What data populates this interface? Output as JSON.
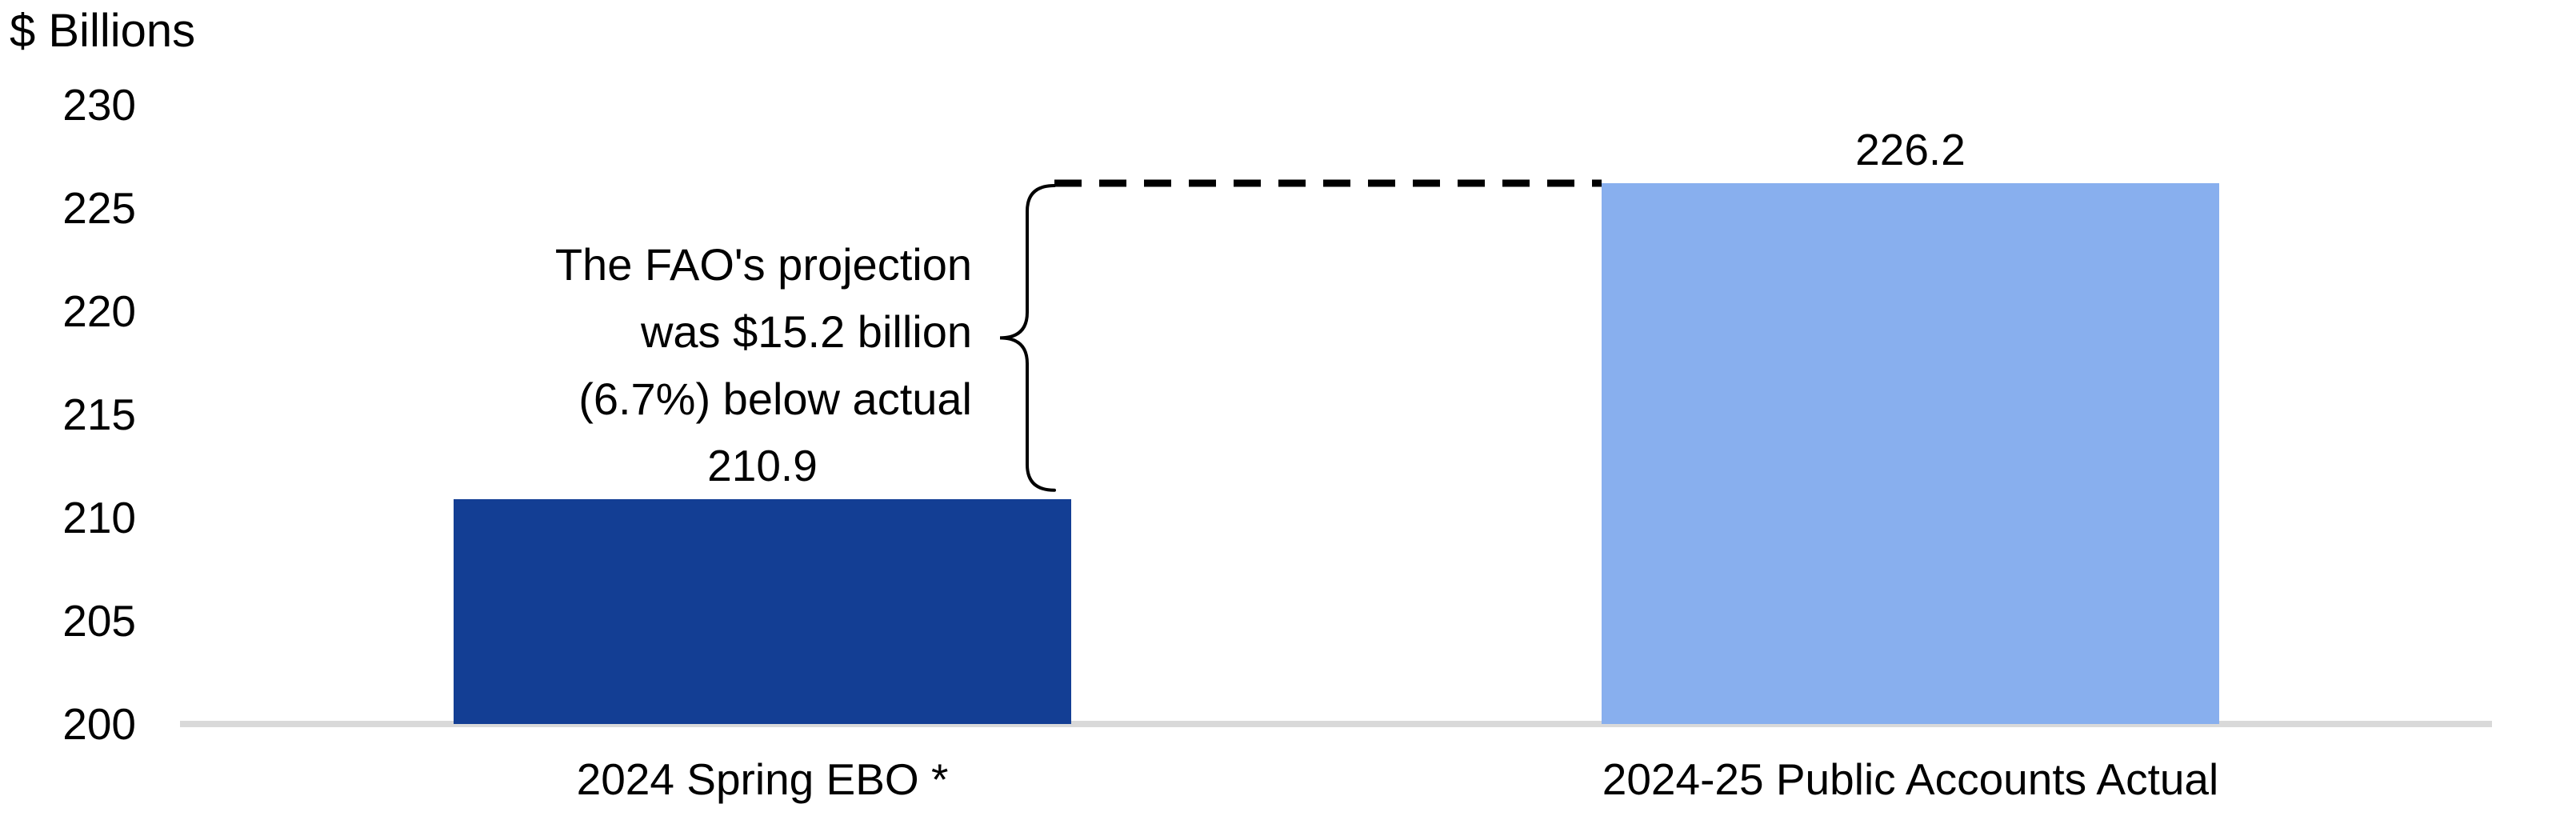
{
  "chart_data": {
    "type": "bar",
    "ylabel": "$ Billions",
    "categories": [
      "2024 Spring EBO *",
      "2024-25 Public Accounts Actual"
    ],
    "values": [
      210.9,
      226.2
    ],
    "value_labels": [
      "210.9",
      "226.2"
    ],
    "bar_colors": [
      "#133E94",
      "#88AFEE"
    ],
    "ylim": [
      200,
      230
    ],
    "yticks": [
      200,
      205,
      210,
      215,
      220,
      225,
      230
    ],
    "grid": false,
    "legend_position": "none",
    "axis_color": "#D9D9D9",
    "text_color": "#000000",
    "annotation": {
      "lines": [
        "The FAO's projection",
        "was $15.2 billion",
        "(6.7%) below actual"
      ],
      "dashed_line_value": 226.2,
      "brace_from_value": 210.9,
      "brace_to_value": 226.2,
      "line_color": "#000000"
    }
  }
}
